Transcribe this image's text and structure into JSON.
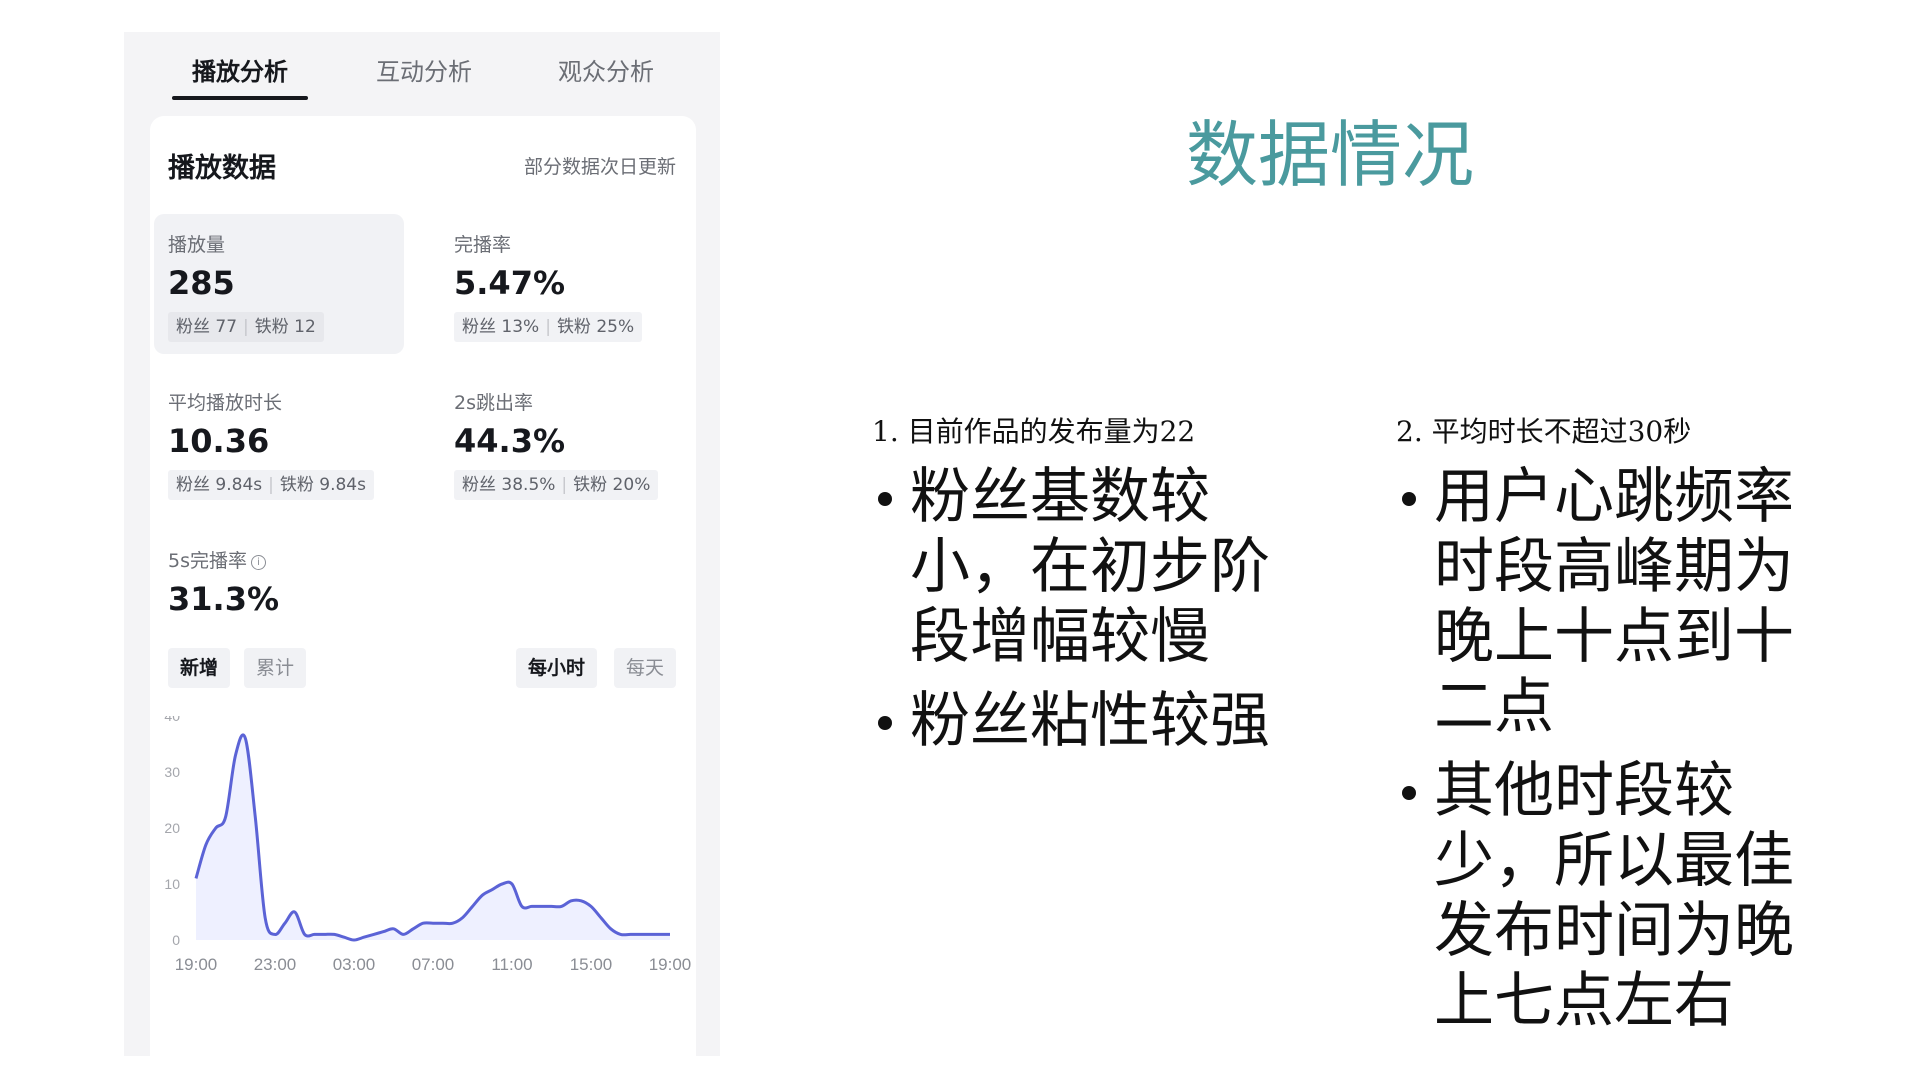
{
  "tabs": [
    {
      "label": "播放分析",
      "active": true
    },
    {
      "label": "互动分析",
      "active": false
    },
    {
      "label": "观众分析",
      "active": false
    }
  ],
  "card": {
    "title": "播放数据",
    "note": "部分数据次日更新"
  },
  "metrics": {
    "plays": {
      "label": "播放量",
      "value": "285",
      "fans": "粉丝 77",
      "iron": "铁粉 12"
    },
    "completion": {
      "label": "完播率",
      "value": "5.47%",
      "fans": "粉丝 13%",
      "iron": "铁粉 25%"
    },
    "avg_duration": {
      "label": "平均播放时长",
      "value": "10.36",
      "fans": "粉丝 9.84s",
      "iron": "铁粉 9.84s"
    },
    "bounce_2s": {
      "label": "2s跳出率",
      "value": "44.3%",
      "fans": "粉丝 38.5%",
      "iron": "铁粉 20%"
    },
    "completion_5s": {
      "label": "5s完播率",
      "value": "31.3%",
      "info_icon": "info-icon"
    }
  },
  "toggles": {
    "mode": [
      {
        "label": "新增",
        "active": true
      },
      {
        "label": "累计",
        "active": false
      }
    ],
    "granularity": [
      {
        "label": "每小时",
        "active": true
      },
      {
        "label": "每天",
        "active": false
      }
    ]
  },
  "chart_data": {
    "type": "area",
    "x_ticks": [
      "19:00",
      "23:00",
      "03:00",
      "07:00",
      "11:00",
      "15:00",
      "19:00"
    ],
    "y_ticks": [
      0,
      10,
      20,
      30,
      40
    ],
    "ylim": [
      0,
      40
    ],
    "x": [
      0,
      0.5,
      1,
      1.5,
      2,
      2.5,
      3,
      3.5,
      4,
      4.5,
      5,
      5.5,
      6,
      6.5,
      7,
      7.5,
      8,
      8.5,
      9,
      9.5,
      10,
      10.5,
      11,
      11.5,
      12,
      12.5,
      13,
      13.5,
      14,
      14.5,
      15,
      15.5,
      16,
      16.5,
      17,
      17.5,
      18,
      18.5,
      19,
      19.5,
      20,
      20.5,
      21,
      21.5,
      22,
      22.5,
      23,
      23.5,
      24
    ],
    "values": [
      11,
      17,
      20,
      22,
      33,
      36,
      22,
      4,
      1,
      3,
      5,
      1,
      1,
      1,
      1,
      0.5,
      0,
      0.5,
      1,
      1.5,
      2,
      1,
      2,
      3,
      3,
      3,
      3,
      4,
      6,
      8,
      9,
      10,
      10,
      6,
      6,
      6,
      6,
      6,
      7,
      7,
      6,
      4,
      2,
      1,
      1,
      1,
      1,
      1,
      1
    ],
    "line_color": "#5b63d6",
    "fill_color": "#eef0ff",
    "grid": false
  },
  "slide": {
    "title": "数据情况",
    "col1": {
      "head": "1. 目前作品的发布量为22",
      "bullets": [
        "粉丝基数较小，在初步阶段增幅较慢",
        "粉丝粘性较强"
      ]
    },
    "col2": {
      "head": "2. 平均时长不超过30秒",
      "bullets": [
        "用户心跳频率时段高峰期为晚上十点到十二点",
        "其他时段较少，所以最佳发布时间为晚上七点左右"
      ]
    }
  },
  "colors": {
    "title": "#4a9a9e",
    "text_dark": "#16181d",
    "text_gray": "#6b6e75"
  }
}
